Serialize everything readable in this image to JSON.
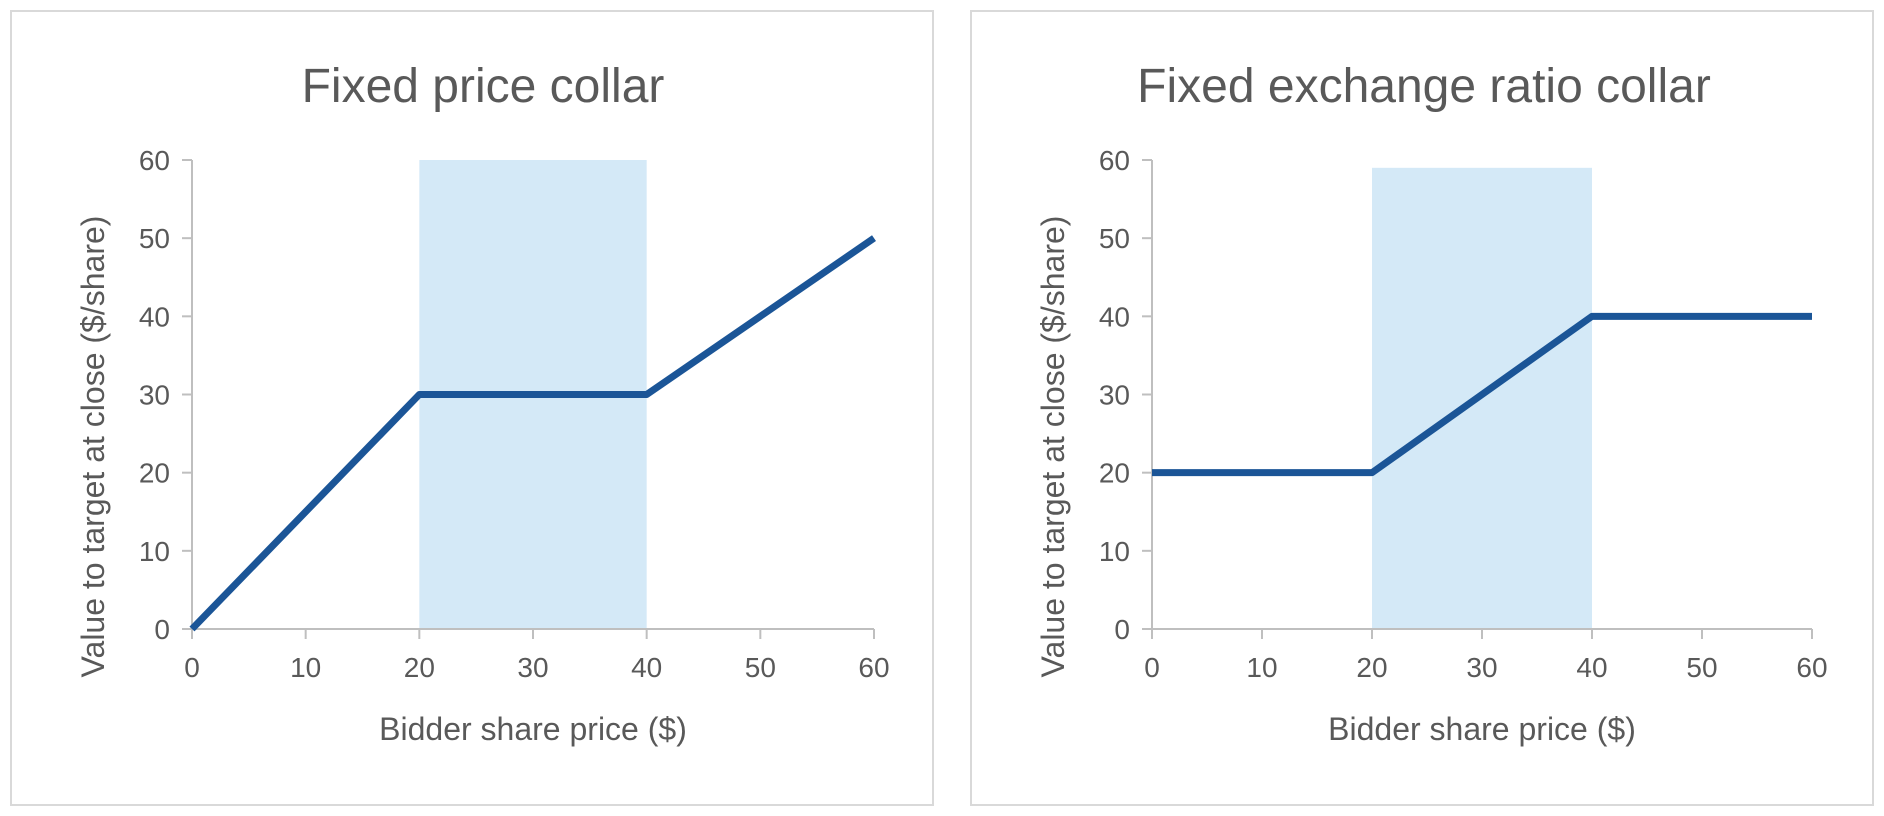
{
  "chart_data": [
    {
      "type": "line",
      "title": "Fixed price collar",
      "xlabel": "Bidder share price ($)",
      "ylabel": "Value to target at close ($/share)",
      "xlim": [
        0,
        60
      ],
      "ylim": [
        0,
        60
      ],
      "xticks": [
        "0",
        "10",
        "20",
        "30",
        "40",
        "50",
        "60"
      ],
      "yticks": [
        "0",
        "10",
        "20",
        "30",
        "40",
        "50",
        "60"
      ],
      "shaded_region": {
        "x": [
          20,
          40
        ],
        "y": [
          0,
          60
        ],
        "color": "#d4e9f7"
      },
      "series": [
        {
          "x": [
            0,
            20,
            40,
            60
          ],
          "y": [
            0,
            30,
            30,
            50
          ],
          "color": "#1b5597"
        }
      ],
      "grid": false,
      "legend": "none"
    },
    {
      "type": "line",
      "title": "Fixed exchange ratio collar",
      "xlabel": "Bidder share price ($)",
      "ylabel": "Value to target at close ($/share)",
      "xlim": [
        0,
        60
      ],
      "ylim": [
        0,
        60
      ],
      "xticks": [
        "0",
        "10",
        "20",
        "30",
        "40",
        "50",
        "60"
      ],
      "yticks": [
        "0",
        "10",
        "20",
        "30",
        "40",
        "50",
        "60"
      ],
      "shaded_region": {
        "x": [
          20,
          40
        ],
        "y": [
          0,
          59
        ],
        "color": "#d4e9f7"
      },
      "series": [
        {
          "x": [
            0,
            20,
            40,
            60
          ],
          "y": [
            20,
            20,
            40,
            40
          ],
          "color": "#1b5597"
        }
      ],
      "grid": false,
      "legend": "none"
    }
  ],
  "axis_color": "#bfbfbf",
  "text_color": "#595959"
}
